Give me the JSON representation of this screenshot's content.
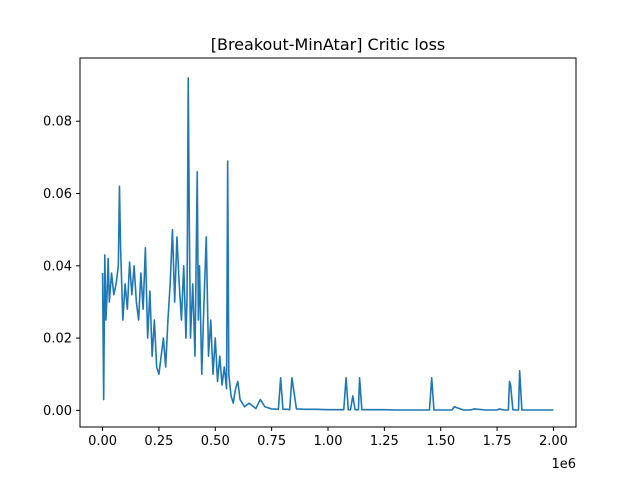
{
  "chart_data": {
    "type": "line",
    "title": "[Breakout-MinAtar] Critic loss",
    "xlabel": "",
    "ylabel": "",
    "x_offset_label": "1e6",
    "xlim": [
      -0.1,
      2.1
    ],
    "ylim": [
      -0.0046,
      0.0975
    ],
    "x_ticks": [
      0.0,
      0.25,
      0.5,
      0.75,
      1.0,
      1.25,
      1.5,
      1.75,
      2.0
    ],
    "x_tick_labels": [
      "0.00",
      "0.25",
      "0.50",
      "0.75",
      "1.00",
      "1.25",
      "1.50",
      "1.75",
      "2.00"
    ],
    "y_ticks": [
      0.0,
      0.02,
      0.04,
      0.06,
      0.08
    ],
    "y_tick_labels": [
      "0.00",
      "0.02",
      "0.04",
      "0.06",
      "0.08"
    ],
    "grid": false,
    "legend": "none",
    "series": [
      {
        "color": "#1f77b4",
        "x": [
          0.0,
          0.005,
          0.01,
          0.015,
          0.02,
          0.025,
          0.03,
          0.04,
          0.05,
          0.06,
          0.07,
          0.075,
          0.08,
          0.09,
          0.1,
          0.11,
          0.12,
          0.13,
          0.14,
          0.15,
          0.16,
          0.17,
          0.18,
          0.19,
          0.2,
          0.21,
          0.22,
          0.23,
          0.24,
          0.25,
          0.26,
          0.27,
          0.28,
          0.29,
          0.3,
          0.31,
          0.32,
          0.33,
          0.34,
          0.35,
          0.36,
          0.37,
          0.375,
          0.38,
          0.385,
          0.39,
          0.4,
          0.41,
          0.42,
          0.425,
          0.43,
          0.44,
          0.45,
          0.46,
          0.47,
          0.48,
          0.49,
          0.5,
          0.51,
          0.52,
          0.53,
          0.54,
          0.55,
          0.555,
          0.56,
          0.57,
          0.58,
          0.59,
          0.6,
          0.61,
          0.62,
          0.63,
          0.65,
          0.68,
          0.7,
          0.72,
          0.75,
          0.78,
          0.79,
          0.8,
          0.82,
          0.83,
          0.84,
          0.86,
          0.9,
          0.95,
          1.0,
          1.05,
          1.07,
          1.08,
          1.09,
          1.1,
          1.11,
          1.12,
          1.135,
          1.14,
          1.15,
          1.2,
          1.25,
          1.3,
          1.35,
          1.4,
          1.45,
          1.46,
          1.47,
          1.5,
          1.55,
          1.56,
          1.6,
          1.63,
          1.65,
          1.7,
          1.75,
          1.76,
          1.78,
          1.8,
          1.805,
          1.81,
          1.82,
          1.83,
          1.84,
          1.845,
          1.85,
          1.86,
          1.9,
          1.95,
          2.0
        ],
        "y": [
          0.038,
          0.003,
          0.043,
          0.025,
          0.032,
          0.042,
          0.03,
          0.038,
          0.032,
          0.035,
          0.04,
          0.062,
          0.045,
          0.025,
          0.035,
          0.028,
          0.041,
          0.032,
          0.04,
          0.03,
          0.025,
          0.038,
          0.028,
          0.045,
          0.02,
          0.033,
          0.015,
          0.025,
          0.012,
          0.01,
          0.015,
          0.02,
          0.012,
          0.025,
          0.035,
          0.05,
          0.03,
          0.048,
          0.035,
          0.025,
          0.04,
          0.02,
          0.032,
          0.092,
          0.05,
          0.02,
          0.035,
          0.015,
          0.066,
          0.025,
          0.04,
          0.01,
          0.03,
          0.048,
          0.015,
          0.025,
          0.01,
          0.02,
          0.008,
          0.015,
          0.007,
          0.012,
          0.006,
          0.069,
          0.01,
          0.004,
          0.002,
          0.006,
          0.008,
          0.003,
          0.002,
          0.001,
          0.002,
          0.0005,
          0.003,
          0.001,
          0.0004,
          0.0003,
          0.009,
          0.0003,
          0.0003,
          0.0002,
          0.009,
          0.0004,
          0.0003,
          0.0003,
          0.0002,
          0.0002,
          0.0002,
          0.009,
          0.0002,
          0.0002,
          0.004,
          0.0002,
          0.0002,
          0.009,
          0.0002,
          0.0002,
          0.0002,
          0.0001,
          0.0001,
          0.0001,
          0.0001,
          0.009,
          0.0001,
          0.0001,
          0.0001,
          0.001,
          0.0001,
          0.0001,
          0.0004,
          0.0001,
          0.0001,
          0.0004,
          0.0001,
          0.0001,
          0.008,
          0.007,
          0.0002,
          0.0001,
          0.0001,
          0.0001,
          0.011,
          0.0001,
          0.0001,
          0.0001,
          0.0001
        ]
      }
    ]
  }
}
